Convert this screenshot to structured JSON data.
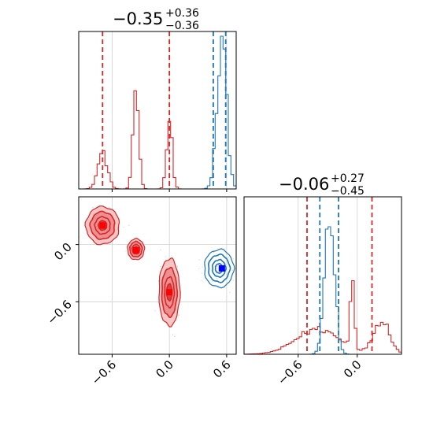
{
  "colors": {
    "red": "#d62728",
    "red_fill": "#ec8f90",
    "red_dark": "#c41f1f",
    "blue": "#1f77b4",
    "marker_red": "#ff0000",
    "marker_blue": "#0000ff",
    "grid": "#d0d0d0"
  },
  "chart_data": [
    {
      "type": "histogram",
      "panel": "top-left",
      "parameter": "x",
      "title": {
        "main": "−0.35",
        "plus": "+0.36",
        "minus": "−0.36"
      },
      "xlim": [
        -0.95,
        0.7
      ],
      "grid": true,
      "series": [
        {
          "name": "",
          "color": "#d62728",
          "modes": [
            {
              "center": -0.7,
              "sigma": 0.05,
              "height": 0.23
            },
            {
              "center": -0.35,
              "sigma": 0.03,
              "height": 0.62
            },
            {
              "center": 0.0,
              "sigma": 0.03,
              "height": 0.42
            }
          ],
          "quantile_lines": [
            -0.7,
            0.0
          ]
        },
        {
          "name": "",
          "color": "#1f77b4",
          "modes": [
            {
              "center": 0.55,
              "sigma": 0.05,
              "height": 0.93
            }
          ],
          "quantile_lines": [
            0.46,
            0.59
          ]
        }
      ],
      "xticks": [
        "−0.6",
        "0.0",
        "0.6"
      ],
      "xtick_values": [
        -0.6,
        0.0,
        0.6
      ]
    },
    {
      "type": "histogram",
      "panel": "bottom-right",
      "parameter": "y",
      "title": {
        "main": "−0.06",
        "plus": "+0.27",
        "minus": "−0.45"
      },
      "xlim": [
        -1.15,
        0.45
      ],
      "grid": true,
      "series": [
        {
          "name": "",
          "color": "#d62728",
          "modes": [
            {
              "center": -0.4,
              "sigma": 0.22,
              "height": 0.16
            },
            {
              "center": -0.05,
              "sigma": 0.02,
              "height": 0.5
            },
            {
              "center": 0.25,
              "sigma": 0.08,
              "height": 0.22
            }
          ],
          "quantile_lines": [
            -0.51,
            0.15
          ]
        },
        {
          "name": "",
          "color": "#1f77b4",
          "modes": [
            {
              "center": -0.28,
              "sigma": 0.05,
              "height": 0.86
            }
          ],
          "quantile_lines": [
            -0.38,
            -0.19
          ]
        }
      ],
      "xticks": [
        "−0.6",
        "0.0"
      ],
      "xtick_values": [
        -0.6,
        0.0
      ]
    },
    {
      "type": "contour",
      "panel": "bottom-left",
      "xlim": [
        -0.95,
        0.7
      ],
      "ylim": [
        -1.15,
        0.5
      ],
      "grid": true,
      "series": [
        {
          "name": "",
          "color": "#d62728",
          "clusters": [
            {
              "x": -0.7,
              "y": 0.2,
              "sx": 0.08,
              "sy": 0.09,
              "marker": [
                -0.7,
                0.2
              ]
            },
            {
              "x": -0.35,
              "y": -0.05,
              "sx": 0.04,
              "sy": 0.05,
              "marker": [
                -0.35,
                -0.06
              ]
            },
            {
              "x": 0.0,
              "y": -0.5,
              "sx": 0.05,
              "sy": 0.16,
              "marker": [
                0.0,
                -0.5
              ]
            }
          ]
        },
        {
          "name": "",
          "color": "#1f77b4",
          "clusters": [
            {
              "x": 0.52,
              "y": -0.25,
              "sx": 0.07,
              "sy": 0.09,
              "marker": [
                0.55,
                -0.25
              ]
            }
          ]
        }
      ],
      "xticks": [
        "−0.6",
        "0.0",
        "0.6"
      ],
      "xtick_values": [
        -0.6,
        0.0,
        0.6
      ],
      "yticks": [
        "0.0",
        "−0.6"
      ],
      "ytick_values": [
        0.0,
        -0.6
      ]
    }
  ]
}
